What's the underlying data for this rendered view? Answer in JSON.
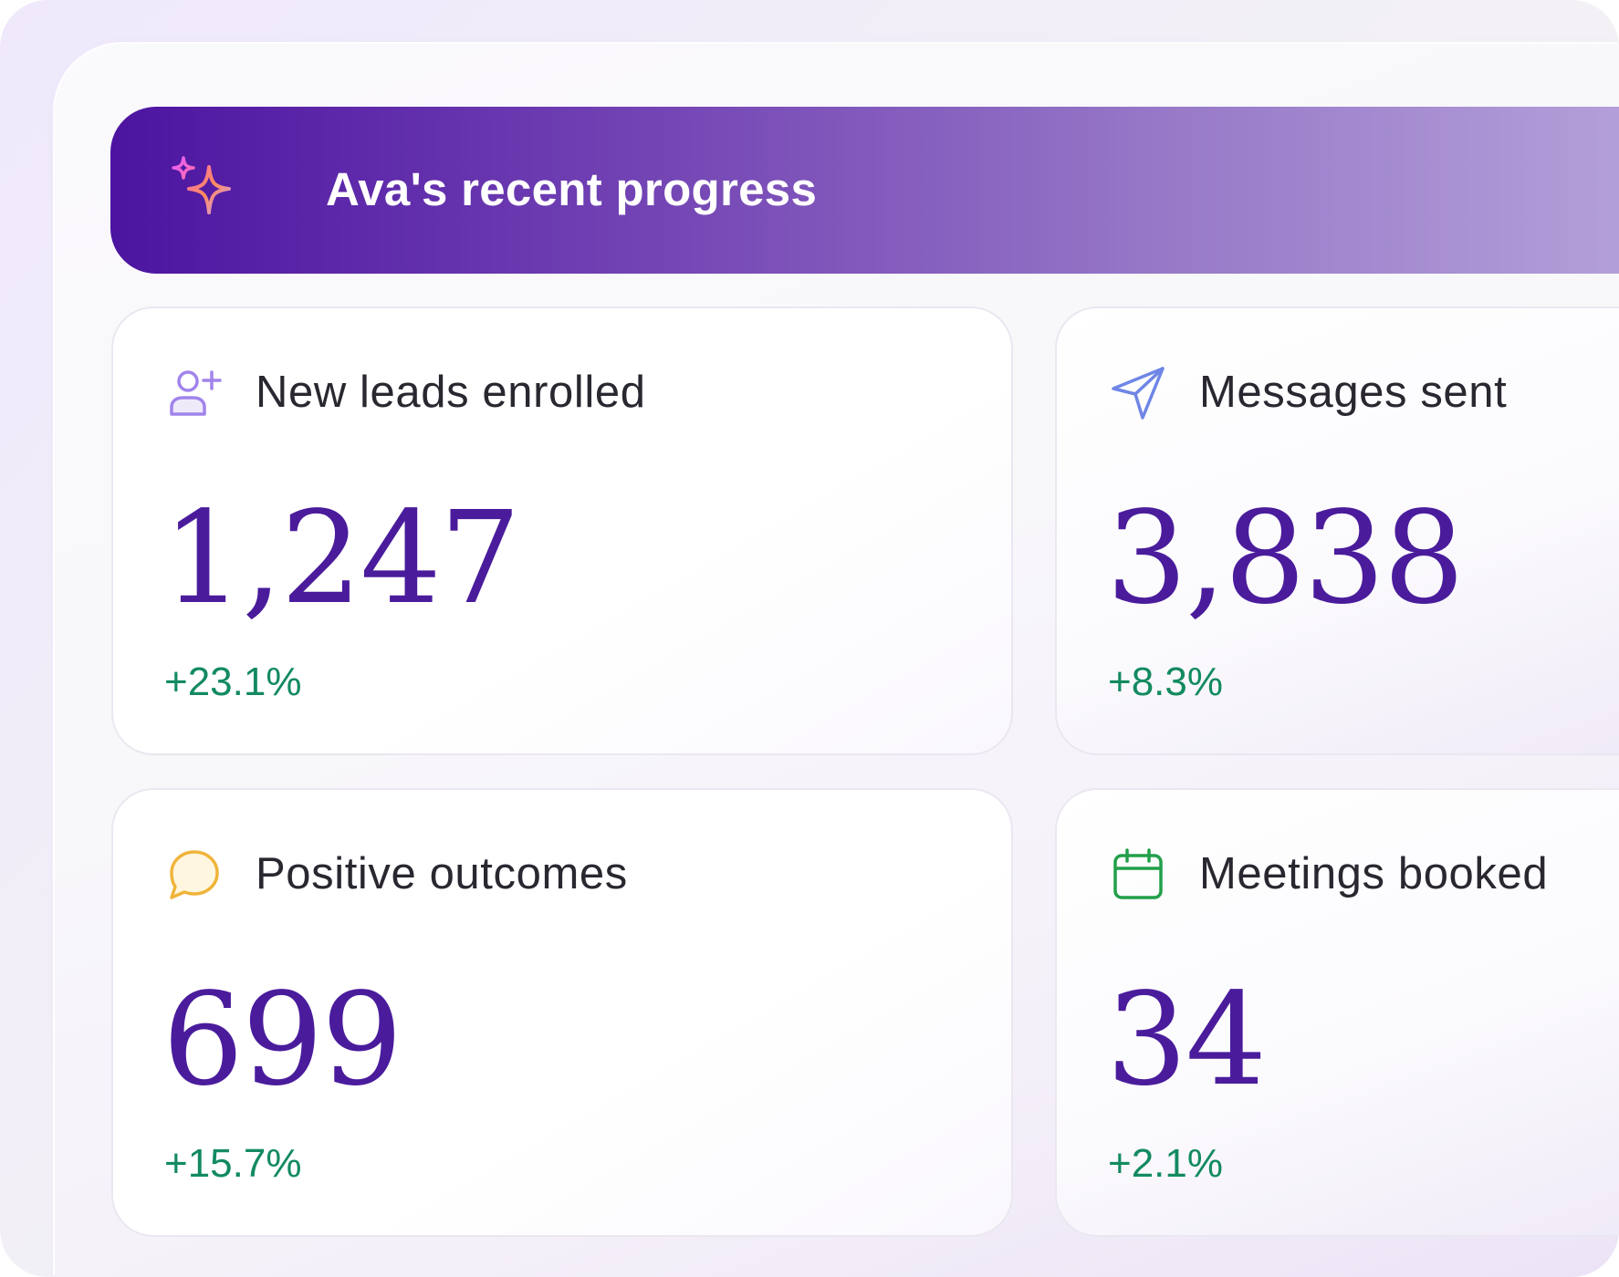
{
  "banner": {
    "title": "Ava's recent progress",
    "icon": "sparkle-icon"
  },
  "metrics": [
    {
      "label": "New leads enrolled",
      "value": "1,247",
      "change": "+23.1%",
      "icon": "user-plus-icon",
      "icon_color": "#a183ec"
    },
    {
      "label": "Messages sent",
      "value": "3,838",
      "change": "+8.3%",
      "icon": "send-icon",
      "icon_color": "#6f86e6"
    },
    {
      "label": "Positive outcomes",
      "value": "699",
      "change": "+15.7%",
      "icon": "chat-bubble-icon",
      "icon_color": "#f0b43a"
    },
    {
      "label": "Meetings booked",
      "value": "34",
      "change": "+2.1%",
      "icon": "calendar-icon",
      "icon_color": "#22a04a"
    }
  ],
  "colors": {
    "accent": "#4a1c9c",
    "positive": "#138a60",
    "banner_start": "#4c14a0",
    "banner_end": "#b39fd9"
  }
}
